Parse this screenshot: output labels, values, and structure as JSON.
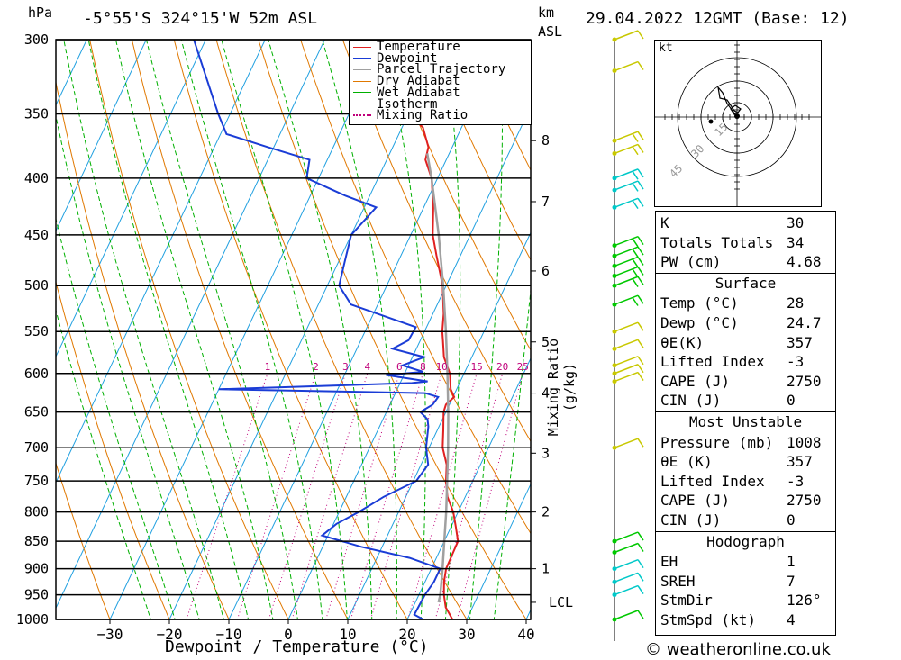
{
  "header": {
    "hpa_unit": "hPa",
    "location": "-5°55'S 324°15'W 52m ASL",
    "km_unit": "km",
    "asl": "ASL",
    "datetime": "29.04.2022 12GMT (Base: 12)"
  },
  "legend": {
    "items": [
      {
        "label": "Temperature",
        "color": "#e02020"
      },
      {
        "label": "Dewpoint",
        "color": "#1a3cd6"
      },
      {
        "label": "Parcel Trajectory",
        "color": "#a0a0a0"
      },
      {
        "label": "Dry Adiabat",
        "color": "#e07800"
      },
      {
        "label": "Wet Adiabat",
        "color": "#00b000"
      },
      {
        "label": "Isotherm",
        "color": "#20a0e0"
      },
      {
        "label": "Mixing Ratio",
        "color": "#c0007a"
      }
    ]
  },
  "chart_data": {
    "type": "line",
    "title": "-5°55'S 324°15'W 52m ASL",
    "xlabel": "Dewpoint / Temperature (°C)",
    "ylabel": "hPa",
    "right_axis_label": "Mixing Ratio (g/kg)",
    "xlim": [
      -40,
      40
    ],
    "x_ticks": [
      -30,
      -20,
      -10,
      0,
      10,
      20,
      30,
      40
    ],
    "pressure_ticks": [
      300,
      350,
      400,
      450,
      500,
      550,
      600,
      650,
      700,
      750,
      800,
      850,
      900,
      950,
      1000
    ],
    "skew_deg_per_unit": 38.3,
    "km_ticks": [
      {
        "label": "8",
        "p": 370
      },
      {
        "label": "7",
        "p": 420
      },
      {
        "label": "6",
        "p": 485
      },
      {
        "label": "5",
        "p": 562
      },
      {
        "label": "4",
        "p": 625
      },
      {
        "label": "3",
        "p": 708
      },
      {
        "label": "2",
        "p": 800
      },
      {
        "label": "1",
        "p": 900
      },
      {
        "label": "LCL",
        "p": 965
      }
    ],
    "mixing_ratio_labels": [
      "1",
      "2",
      "3",
      "4",
      "6",
      "8",
      "10",
      "15",
      "20",
      "25"
    ],
    "mixing_ratio_values": [
      1,
      2,
      3,
      4,
      6,
      8,
      10,
      15,
      20,
      25
    ],
    "series": [
      {
        "name": "Temperature",
        "points": [
          [
            1000,
            27.6
          ],
          [
            975,
            25.5
          ],
          [
            950,
            24.2
          ],
          [
            925,
            23.2
          ],
          [
            900,
            22.5
          ],
          [
            875,
            22.4
          ],
          [
            850,
            22.3
          ],
          [
            825,
            20.8
          ],
          [
            800,
            19.2
          ],
          [
            775,
            17.0
          ],
          [
            750,
            15.5
          ],
          [
            725,
            14.3
          ],
          [
            700,
            12.3
          ],
          [
            675,
            11.0
          ],
          [
            650,
            9.6
          ],
          [
            640,
            9.4
          ],
          [
            630,
            10.2
          ],
          [
            620,
            9.0
          ],
          [
            600,
            7.6
          ],
          [
            580,
            5.3
          ],
          [
            560,
            3.8
          ],
          [
            550,
            3.0
          ],
          [
            530,
            1.8
          ],
          [
            500,
            -0.6
          ],
          [
            470,
            -4.0
          ],
          [
            450,
            -6.3
          ],
          [
            425,
            -8.4
          ],
          [
            400,
            -11.0
          ],
          [
            385,
            -13.5
          ],
          [
            375,
            -14.0
          ],
          [
            360,
            -16.5
          ],
          [
            350,
            -20.0
          ],
          [
            330,
            -26.0
          ],
          [
            300,
            -31.0
          ]
        ]
      },
      {
        "name": "Dewpoint",
        "points": [
          [
            1000,
            22.7
          ],
          [
            990,
            20.8
          ],
          [
            950,
            21.0
          ],
          [
            925,
            21.5
          ],
          [
            900,
            21.5
          ],
          [
            880,
            15.5
          ],
          [
            860,
            6.5
          ],
          [
            840,
            -1.0
          ],
          [
            820,
            0.5
          ],
          [
            800,
            3.3
          ],
          [
            775,
            6.3
          ],
          [
            750,
            10.5
          ],
          [
            725,
            11.2
          ],
          [
            700,
            9.5
          ],
          [
            670,
            8.2
          ],
          [
            660,
            7.5
          ],
          [
            650,
            5.7
          ],
          [
            640,
            7.2
          ],
          [
            630,
            7.5
          ],
          [
            625,
            5.0
          ],
          [
            620,
            -30.0
          ],
          [
            612,
            2.0
          ],
          [
            610,
            4.5
          ],
          [
            602,
            -3.0
          ],
          [
            598,
            3.0
          ],
          [
            590,
            -1.0
          ],
          [
            585,
            0.5
          ],
          [
            580,
            2.0
          ],
          [
            570,
            -4.0
          ],
          [
            560,
            -2.0
          ],
          [
            545,
            -1.8
          ],
          [
            520,
            -14.5
          ],
          [
            500,
            -18.0
          ],
          [
            475,
            -19.0
          ],
          [
            450,
            -20.0
          ],
          [
            425,
            -18.0
          ],
          [
            415,
            -24.0
          ],
          [
            400,
            -32.0
          ],
          [
            385,
            -33.0
          ],
          [
            375,
            -41.0
          ],
          [
            365,
            -49.0
          ],
          [
            350,
            -52.0
          ],
          [
            300,
            -62.0
          ]
        ]
      },
      {
        "name": "Parcel Trajectory",
        "points": [
          [
            965,
            23.9
          ],
          [
            950,
            23.6
          ],
          [
            900,
            21.9
          ],
          [
            850,
            20.0
          ],
          [
            800,
            18.0
          ],
          [
            750,
            15.7
          ],
          [
            700,
            13.2
          ],
          [
            650,
            10.4
          ],
          [
            600,
            7.2
          ],
          [
            550,
            3.6
          ],
          [
            500,
            -0.5
          ],
          [
            450,
            -5.3
          ],
          [
            400,
            -11.0
          ],
          [
            380,
            -13.7
          ]
        ]
      }
    ]
  },
  "hodograph": {
    "unit_label": "kt",
    "ring_labels": [
      "15",
      "30",
      "45"
    ]
  },
  "indices": {
    "general": [
      {
        "label": "K",
        "value": "30"
      },
      {
        "label": "Totals Totals",
        "value": "34"
      },
      {
        "label": "PW (cm)",
        "value": "4.68"
      }
    ],
    "surface_title": "Surface",
    "surface": [
      {
        "label": "Temp (°C)",
        "value": "28"
      },
      {
        "label": "Dewp (°C)",
        "value": "24.7"
      },
      {
        "label": "θE(K)",
        "value": "357"
      },
      {
        "label": "Lifted Index",
        "value": "-3"
      },
      {
        "label": "CAPE (J)",
        "value": "2750"
      },
      {
        "label": "CIN (J)",
        "value": "0"
      }
    ],
    "unstable_title": "Most Unstable",
    "unstable": [
      {
        "label": "Pressure (mb)",
        "value": "1008"
      },
      {
        "label": "θE (K)",
        "value": "357"
      },
      {
        "label": "Lifted Index",
        "value": "-3"
      },
      {
        "label": "CAPE (J)",
        "value": "2750"
      },
      {
        "label": "CIN (J)",
        "value": "0"
      }
    ],
    "hodo_title": "Hodograph",
    "hodo": [
      {
        "label": "EH",
        "value": "1"
      },
      {
        "label": "SREH",
        "value": "7"
      },
      {
        "label": "StmDir",
        "value": "126°"
      },
      {
        "label": "StmSpd (kt)",
        "value": "4"
      }
    ]
  },
  "footer": {
    "copyright": "© weatheronline.co.uk"
  }
}
